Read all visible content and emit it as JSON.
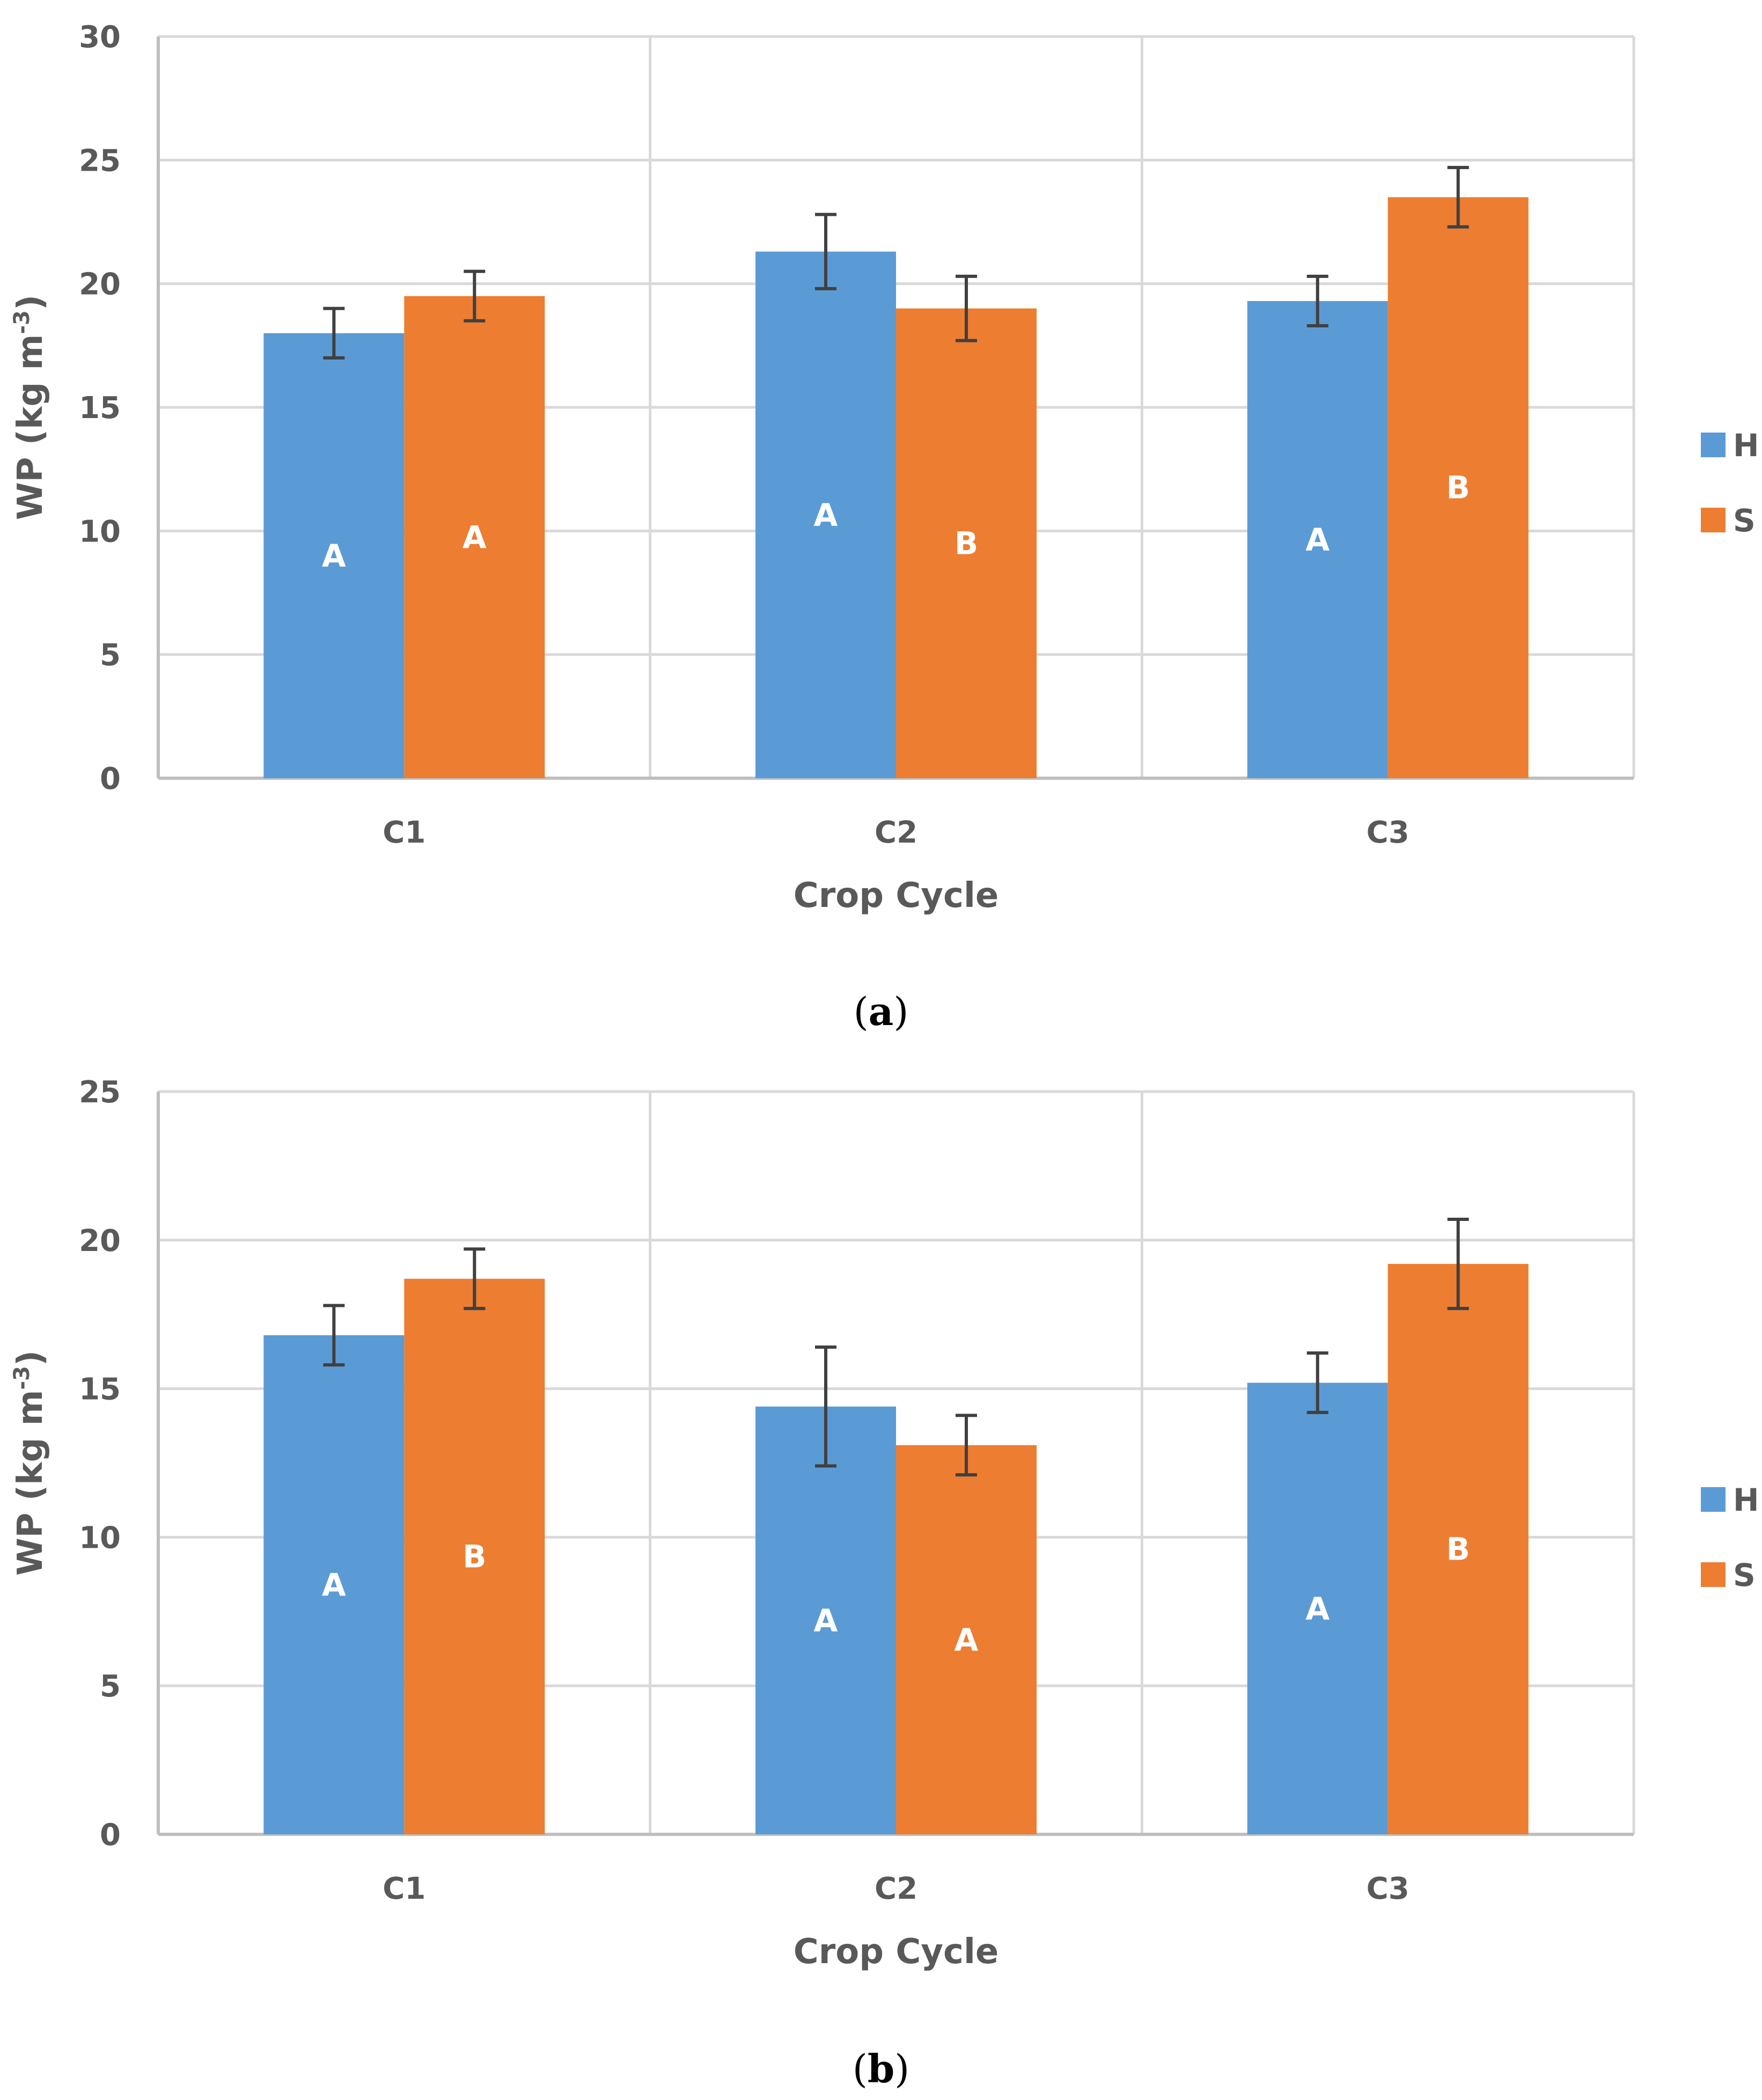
{
  "chart_data": [
    {
      "panel": "a",
      "type": "bar",
      "caption": "(a)",
      "caption_open": "(",
      "caption_letter": "a",
      "caption_close": ")",
      "categories": [
        "C1",
        "C2",
        "C3"
      ],
      "xlabel": "Crop Cycle",
      "ylabel": "WP (kg m",
      "ylabel_sup": "-3",
      "ylabel_close": ")",
      "ylim": [
        0,
        30
      ],
      "yticks": [
        0,
        5,
        10,
        15,
        20,
        25,
        30
      ],
      "grid": true,
      "legend_position": "right",
      "series": [
        {
          "name": "H",
          "color": "#5B9BD5",
          "values": [
            18.0,
            21.3,
            19.3
          ],
          "errors": [
            1.0,
            1.5,
            1.0
          ],
          "labels": [
            "A",
            "A",
            "A"
          ]
        },
        {
          "name": "S",
          "color": "#ED7D31",
          "values": [
            19.5,
            19.0,
            23.5
          ],
          "errors": [
            1.0,
            1.3,
            1.2
          ],
          "labels": [
            "A",
            "B",
            "B"
          ]
        }
      ]
    },
    {
      "panel": "b",
      "type": "bar",
      "caption": "(b)",
      "caption_open": "(",
      "caption_letter": "b",
      "caption_close": ")",
      "categories": [
        "C1",
        "C2",
        "C3"
      ],
      "xlabel": "Crop Cycle",
      "ylabel": "WP (kg m",
      "ylabel_sup": "-3",
      "ylabel_close": ")",
      "ylim": [
        0,
        25
      ],
      "yticks": [
        0,
        5,
        10,
        15,
        20,
        25
      ],
      "grid": true,
      "legend_position": "right",
      "series": [
        {
          "name": "H",
          "color": "#5B9BD5",
          "values": [
            16.8,
            14.4,
            15.2
          ],
          "errors": [
            1.0,
            2.0,
            1.0
          ],
          "labels": [
            "A",
            "A",
            "A"
          ]
        },
        {
          "name": "S",
          "color": "#ED7D31",
          "values": [
            18.7,
            13.1,
            19.2
          ],
          "errors": [
            1.0,
            1.0,
            1.5
          ],
          "labels": [
            "B",
            "A",
            "B"
          ]
        }
      ]
    }
  ],
  "colors": {
    "grid": "#D9D9D9",
    "axis": "#BFBFBF",
    "error_bar": "#404040",
    "text": "#595959"
  }
}
